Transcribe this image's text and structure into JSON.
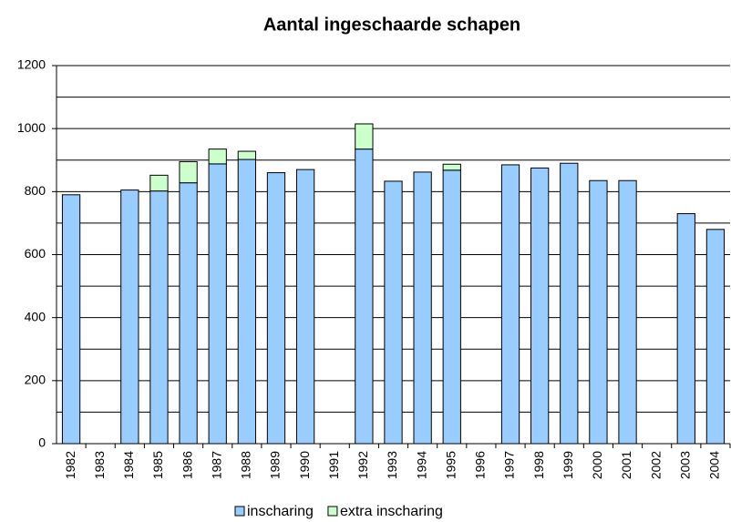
{
  "chart_data": {
    "type": "stacked-bar",
    "title": "Aantal ingeschaarde schapen",
    "categories": [
      "1982",
      "1983",
      "1984",
      "1985",
      "1986",
      "1987",
      "1988",
      "1989",
      "1990",
      "1991",
      "1992",
      "1993",
      "1994",
      "1995",
      "1996",
      "1997",
      "1998",
      "1999",
      "2000",
      "2001",
      "2002",
      "2003",
      "2004"
    ],
    "series": [
      {
        "name": "inscharing",
        "color": "#99ccff",
        "values": [
          790,
          null,
          805,
          802,
          828,
          888,
          902,
          860,
          870,
          null,
          935,
          833,
          862,
          868,
          null,
          885,
          875,
          890,
          835,
          835,
          null,
          730,
          680
        ]
      },
      {
        "name": "extra inscharing",
        "color": "#ccffcc",
        "values": [
          null,
          null,
          null,
          50,
          67,
          47,
          26,
          null,
          null,
          null,
          80,
          null,
          null,
          19,
          null,
          null,
          null,
          null,
          null,
          null,
          null,
          null,
          null
        ]
      }
    ],
    "ylim": [
      0,
      1200
    ],
    "yticks": [
      0,
      200,
      400,
      600,
      800,
      1000,
      1200
    ],
    "minor_yticks": [
      100,
      300,
      500,
      700,
      900,
      1100
    ],
    "grid": true,
    "legend": "bottom"
  }
}
